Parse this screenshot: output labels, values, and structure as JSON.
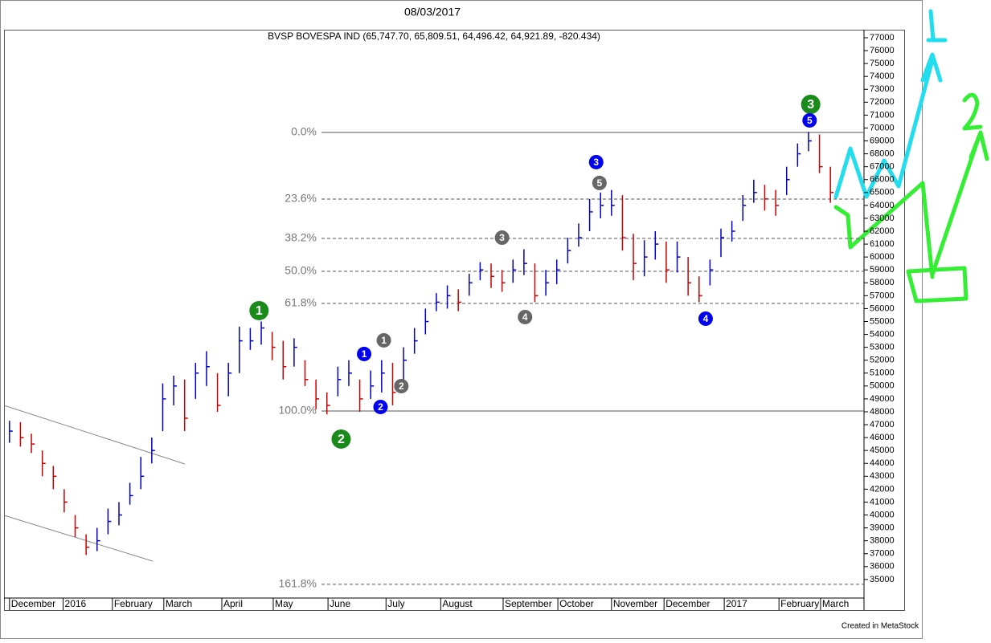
{
  "chart_data": {
    "type": "ohlc",
    "date": "08/03/2017",
    "title": "BVSP BOVESPA IND (65,747.70, 65,809.51, 64,496.42, 64,921.89, -820.434)",
    "footer": "Created in MetaStock",
    "up_color": "#0000cc",
    "down_color": "#cc0000",
    "close": [
      46500,
      46000,
      45500,
      44000,
      43000,
      41000,
      39000,
      37500,
      38000,
      39500,
      40000,
      41500,
      43000,
      45000,
      49000,
      50000,
      47500,
      51000,
      51500,
      48500,
      51000,
      53500,
      53500,
      54500,
      53000,
      51500,
      53000,
      50500,
      49000,
      48500,
      50500,
      51000,
      49000,
      50000,
      51000,
      49500,
      52000,
      53500,
      55000,
      56500,
      57000,
      56500,
      58000,
      59000,
      58500,
      58000,
      59000,
      59500,
      57000,
      58000,
      59000,
      60500,
      61500,
      63500,
      64000,
      64000,
      61500,
      59500,
      60000,
      61000,
      59000,
      60000,
      58000,
      57000,
      59000,
      61500,
      62000,
      64000,
      65000,
      64500,
      64000,
      66000,
      68000,
      69000,
      67000,
      65000
    ],
    "high": [
      47300,
      47200,
      46300,
      45000,
      43800,
      42000,
      40000,
      38500,
      39000,
      40500,
      41000,
      42500,
      44500,
      46000,
      50200,
      50800,
      50500,
      51800,
      52700,
      51000,
      51800,
      54600,
      54500,
      55000,
      54200,
      53500,
      53700,
      52000,
      50500,
      49500,
      51500,
      52000,
      50500,
      51200,
      52000,
      51800,
      53000,
      54500,
      56000,
      57200,
      57800,
      57500,
      58700,
      59600,
      59500,
      59000,
      59800,
      60600,
      59500,
      59000,
      59800,
      61500,
      62600,
      64500,
      65000,
      65200,
      64800,
      61800,
      61300,
      62000,
      61200,
      61200,
      60000,
      58500,
      59800,
      62200,
      62800,
      64800,
      66000,
      65600,
      65200,
      67000,
      68800,
      69700,
      69500,
      67000
    ],
    "low": [
      45600,
      45300,
      44800,
      43000,
      42000,
      40200,
      38300,
      36900,
      37200,
      38500,
      39200,
      40800,
      42000,
      44000,
      46500,
      48500,
      46500,
      49000,
      50000,
      48000,
      49200,
      51000,
      52800,
      53200,
      52000,
      50500,
      51500,
      50000,
      48200,
      47800,
      49200,
      50000,
      48000,
      49000,
      49500,
      48500,
      50500,
      52500,
      54000,
      55800,
      56000,
      55800,
      57000,
      58200,
      57600,
      57300,
      58000,
      58600,
      56500,
      57000,
      57900,
      59500,
      60800,
      62000,
      63000,
      63200,
      60500,
      58200,
      58500,
      59800,
      58000,
      58800,
      57000,
      56500,
      57800,
      60000,
      61200,
      62800,
      64200,
      63600,
      63200,
      64800,
      67000,
      68200,
      66500,
      64200
    ],
    "xlim": [
      -0.5,
      75.5
    ],
    "xticks": [
      {
        "value": 0,
        "label": "December"
      },
      {
        "value": 4.9,
        "label": "2016"
      },
      {
        "value": 9.4,
        "label": "February"
      },
      {
        "value": 14.1,
        "label": "March"
      },
      {
        "value": 19.4,
        "label": "April"
      },
      {
        "value": 24.1,
        "label": "May"
      },
      {
        "value": 29.1,
        "label": "June"
      },
      {
        "value": 34.4,
        "label": "July"
      },
      {
        "value": 39.4,
        "label": "August"
      },
      {
        "value": 45.1,
        "label": "September"
      },
      {
        "value": 50.1,
        "label": "October"
      },
      {
        "value": 55,
        "label": "November"
      },
      {
        "value": 59.8,
        "label": "December"
      },
      {
        "value": 65.3,
        "label": "2017"
      },
      {
        "value": 70.3,
        "label": "February"
      },
      {
        "value": 74.1,
        "label": "March"
      }
    ],
    "ylim": [
      33560,
      77560
    ],
    "yticks": [
      35000,
      36000,
      37000,
      38000,
      39000,
      40000,
      41000,
      42000,
      43000,
      44000,
      45000,
      46000,
      47000,
      48000,
      49000,
      50000,
      51000,
      52000,
      53000,
      54000,
      55000,
      56000,
      57000,
      58000,
      59000,
      60000,
      61000,
      62000,
      63000,
      64000,
      65000,
      66000,
      67000,
      68000,
      69000,
      70000,
      71000,
      72000,
      73000,
      74000,
      75000,
      76000,
      77000
    ],
    "fib_levels": [
      {
        "value": 69657,
        "label": "0.0%"
      },
      {
        "value": 64490,
        "label": "23.6%"
      },
      {
        "value": 61443,
        "label": "38.2%"
      },
      {
        "value": 58892,
        "label": "50.0%"
      },
      {
        "value": 56403,
        "label": "61.8%"
      },
      {
        "value": 48063,
        "label": "100.0%"
      },
      {
        "value": 34623,
        "label": "161.8%"
      }
    ],
    "wave_labels": [
      {
        "label": "1",
        "color": "#1a8a1a",
        "x": 22.8,
        "y": 55843
      },
      {
        "label": "2",
        "color": "#1a8a1a",
        "x": 30.3,
        "y": 45886
      },
      {
        "label": "3",
        "color": "#1a8a1a",
        "x": 73.2,
        "y": 71835
      },
      {
        "label": "1",
        "color": "#0000ee",
        "x": 32.4,
        "y": 52483
      },
      {
        "label": "2",
        "color": "#0000ee",
        "x": 33.9,
        "y": 48375
      },
      {
        "label": "3",
        "color": "#0000ee",
        "x": 53.6,
        "y": 67355
      },
      {
        "label": "4",
        "color": "#0000ee",
        "x": 63.6,
        "y": 55220
      },
      {
        "label": "5",
        "color": "#0000ee",
        "x": 73.1,
        "y": 70590
      },
      {
        "label": "1",
        "color": "#666666",
        "x": 34.2,
        "y": 53540
      },
      {
        "label": "2",
        "color": "#666666",
        "x": 35.8,
        "y": 49990
      },
      {
        "label": "3",
        "color": "#666666",
        "x": 45,
        "y": 61500
      },
      {
        "label": "4",
        "color": "#666666",
        "x": 47.1,
        "y": 55345
      },
      {
        "label": "5",
        "color": "#666666",
        "x": 53.9,
        "y": 65740
      }
    ]
  }
}
